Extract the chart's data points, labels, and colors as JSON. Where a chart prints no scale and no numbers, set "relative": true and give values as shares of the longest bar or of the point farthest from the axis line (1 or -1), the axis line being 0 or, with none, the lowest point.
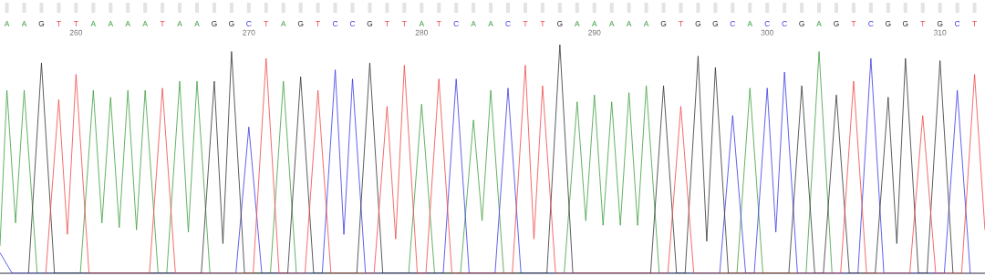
{
  "chart_data": {
    "type": "line",
    "relative": true,
    "xlim": [
      255.6,
      312.6
    ],
    "xticks": [
      260,
      270,
      280,
      290,
      300,
      310
    ],
    "annotations": [
      "A",
      "A",
      "G",
      "T",
      "T",
      "A",
      "A",
      "A",
      "A",
      "T",
      "A",
      "A",
      "G",
      "G",
      "C",
      "T",
      "A",
      "G",
      "T",
      "C",
      "C",
      "G",
      "T",
      "T",
      "A",
      "T",
      "C",
      "A",
      "A",
      "C",
      "T",
      "T",
      "G",
      "A",
      "A",
      "A",
      "A",
      "A",
      "G",
      "T",
      "G",
      "G",
      "C",
      "A",
      "C",
      "C",
      "G",
      "A",
      "G",
      "T",
      "C",
      "G",
      "G",
      "T",
      "G",
      "C",
      "T"
    ],
    "series": [
      {
        "color": "#3e9e3e",
        "x": [
          255.6,
          256,
          256.5,
          257,
          257.75,
          260.25,
          261,
          261.5,
          262,
          262.5,
          263,
          263.5,
          264,
          264.75,
          265.25,
          266,
          266.5,
          267,
          267.75,
          271.25,
          272,
          272.75,
          279.25,
          280,
          280.75,
          282.25,
          283,
          283.5,
          284,
          284.75,
          288.25,
          289,
          289.5,
          290,
          290.5,
          291,
          291.5,
          292,
          292.5,
          293,
          293.75,
          298.25,
          299,
          299.75,
          302.25,
          303,
          303.75
        ],
        "values": [
          0.12,
          0.8,
          0.22,
          0.8,
          0,
          0,
          0.8,
          0.22,
          0.77,
          0.2,
          0.8,
          0.19,
          0.8,
          0,
          0,
          0.84,
          0.18,
          0.84,
          0,
          0,
          0.84,
          0,
          0,
          0.74,
          0,
          0,
          0.67,
          0.23,
          0.8,
          0,
          0,
          0.75,
          0.23,
          0.78,
          0.21,
          0.75,
          0.21,
          0.79,
          0.21,
          0.82,
          0,
          0,
          0.81,
          0,
          0,
          0.97,
          0
        ]
      },
      {
        "color": "#3a3ae6",
        "x": [
          255.6,
          256.3,
          269.25,
          270,
          270.75,
          274.25,
          275,
          275.5,
          276,
          276.75,
          281.25,
          282,
          282.75,
          284.25,
          285,
          285.75,
          297.25,
          298,
          298.75,
          299.25,
          300,
          300.5,
          301,
          301.75,
          305.25,
          306,
          306.75,
          310.25,
          311,
          311.75
        ],
        "values": [
          0.09,
          0,
          0,
          0.64,
          0,
          0,
          0.89,
          0.17,
          0.85,
          0,
          0,
          0.85,
          0,
          0,
          0.81,
          0,
          0,
          0.69,
          0,
          0,
          0.81,
          0.18,
          0.88,
          0,
          0,
          0.94,
          0,
          0,
          0.8,
          0
        ]
      },
      {
        "color": "#333333",
        "x": [
          257.25,
          258,
          258.75,
          267.25,
          268,
          268.5,
          269,
          269.75,
          272.25,
          273,
          273.75,
          276.25,
          277,
          277.75,
          287.25,
          288,
          288.75,
          293.25,
          294,
          294.75,
          295.25,
          296,
          296.5,
          297,
          297.75,
          301.25,
          302,
          302.75,
          303.25,
          304,
          304.75,
          306.25,
          307,
          307.5,
          308,
          308.75,
          309.25,
          310,
          310.75
        ],
        "values": [
          0,
          0.92,
          0,
          0,
          0.84,
          0.13,
          0.97,
          0,
          0,
          0.86,
          0,
          0,
          0.92,
          0,
          0,
          1.0,
          0,
          0,
          0.82,
          0,
          0,
          0.95,
          0.14,
          0.9,
          0,
          0,
          0.82,
          0,
          0,
          0.78,
          0,
          0,
          0.77,
          0.13,
          0.94,
          0,
          0,
          0.93,
          0
        ]
      },
      {
        "color": "#f04848",
        "x": [
          258.25,
          259,
          259.5,
          260,
          260.75,
          264.25,
          265,
          265.75,
          270.25,
          271,
          271.75,
          273.25,
          274,
          274.75,
          277.25,
          278,
          278.5,
          279,
          279.75,
          280.25,
          281,
          281.75,
          285.25,
          286,
          286.5,
          287,
          287.75,
          294.25,
          295,
          295.75,
          304.25,
          305,
          305.75,
          308.25,
          309,
          309.75,
          311.25,
          312,
          312.6
        ],
        "values": [
          0,
          0.76,
          0.17,
          0.87,
          0,
          0,
          0.81,
          0,
          0,
          0.94,
          0,
          0,
          0.8,
          0,
          0,
          0.73,
          0.15,
          0.91,
          0,
          0,
          0.85,
          0,
          0,
          0.91,
          0.15,
          0.82,
          0,
          0,
          0.73,
          0,
          0,
          0.84,
          0,
          0,
          0.69,
          0,
          0,
          0.87,
          0.19
        ]
      }
    ]
  }
}
